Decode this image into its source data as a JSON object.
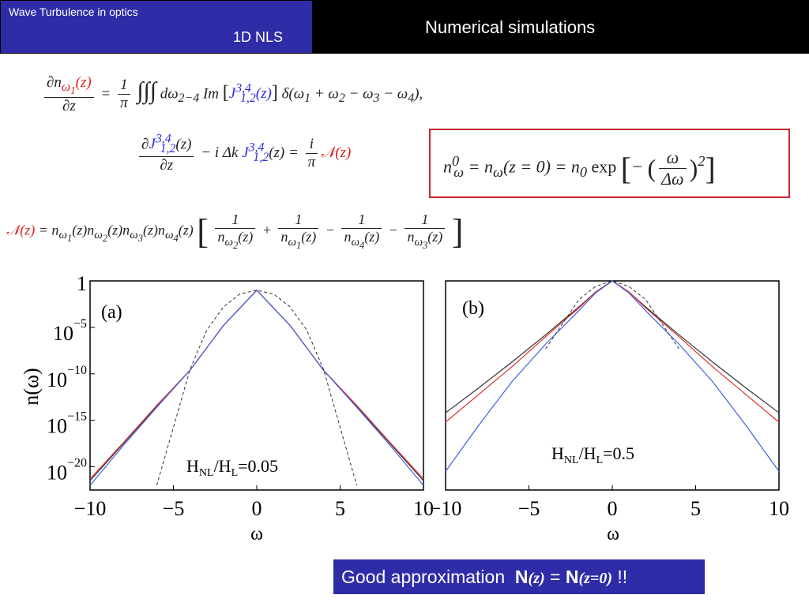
{
  "header": {
    "course_title": "Wave Turbulence in optics",
    "section": "1D NLS",
    "slide_title": "Numerical simulations"
  },
  "equations": {
    "eq1_lhs": "∂n_ω1(z)/∂z",
    "eq1_rhs": "= (1/π) ∫∫∫ dω2-4 Im [J^{3,4}_{1,2}(z)] δ(ω1 + ω2 − ω3 − ω4),",
    "eq2": "∂J^{3,4}_{1,2}(z)/∂z − i Δk J^{3,4}_{1,2}(z) = (i/π) N(z)",
    "eq3": "N(z) = n_ω1(z) n_ω2(z) n_ω3(z) n_ω4(z) [1/n_ω2(z) + 1/n_ω1(z) − 1/n_ω4(z) − 1/n_ω3(z)]",
    "boxed": "n⁰_ω = n_ω(z = 0) = n₀ exp[−(ω/Δω)²]"
  },
  "colors": {
    "header_blue": "#2f2ca8",
    "header_black": "#000000",
    "box_red": "#c8262c",
    "eq_red": "#dd2222",
    "eq_blue": "#2a2ae0",
    "series_black": "#333333",
    "series_red": "#e03030",
    "series_blue": "#4060e0"
  },
  "chart_data": [
    {
      "type": "line",
      "panel_label": "(a)",
      "annotation": "H_NL/H_L=0.05",
      "xlabel": "ω",
      "ylabel": "n(ω)",
      "xlim": [
        -10,
        10
      ],
      "xticks": [
        -10,
        -5,
        0,
        5,
        10
      ],
      "ylog": true,
      "ylim_log10": [
        -22.5,
        0
      ],
      "yticks": [
        "1",
        "10^−5",
        "10^−10",
        "10^−15",
        "10^−20"
      ],
      "ytick_values_log10": [
        0,
        -5,
        -10,
        -15,
        -20
      ],
      "x": [
        -10,
        -8,
        -6,
        -4,
        -3,
        -2,
        -1,
        0,
        1,
        2,
        3,
        4,
        6,
        8,
        10
      ],
      "series": [
        {
          "color": "#333333",
          "style": "solid",
          "log10_values": [
            -21.5,
            -17.5,
            -13.5,
            -9.6,
            -7.2,
            -4.8,
            -2.9,
            -1.0,
            -2.9,
            -4.8,
            -7.2,
            -9.6,
            -13.5,
            -17.5,
            -21.5
          ]
        },
        {
          "color": "#e03030",
          "style": "solid",
          "log10_values": [
            -21.3,
            -17.4,
            -13.4,
            -9.6,
            -7.2,
            -4.8,
            -2.9,
            -1.0,
            -2.9,
            -4.8,
            -7.2,
            -9.6,
            -13.4,
            -17.4,
            -21.3
          ]
        },
        {
          "color": "#4060e0",
          "style": "solid",
          "log10_values": [
            -22.0,
            -17.7,
            -13.6,
            -9.6,
            -7.2,
            -4.8,
            -2.9,
            -1.0,
            -2.9,
            -4.8,
            -7.2,
            -9.6,
            -13.6,
            -17.7,
            -22.0
          ]
        },
        {
          "color": "#333333",
          "style": "dashed",
          "log10_values": [
            null,
            null,
            -22.0,
            -9.5,
            -5.3,
            -2.8,
            -1.4,
            -1.0,
            -1.4,
            -2.8,
            -5.3,
            -9.5,
            -22.0,
            null,
            null
          ]
        }
      ]
    },
    {
      "type": "line",
      "panel_label": "(b)",
      "annotation": "H_NL/H_L=0.5",
      "xlabel": "ω",
      "ylabel": "",
      "xlim": [
        -10,
        10
      ],
      "xticks": [
        -10,
        -5,
        0,
        5,
        10
      ],
      "ylog": true,
      "ylim_log10": [
        -22.5,
        0
      ],
      "x": [
        -10,
        -8,
        -6,
        -4,
        -2,
        -1,
        0,
        1,
        2,
        4,
        6,
        8,
        10
      ],
      "series": [
        {
          "color": "#333333",
          "style": "solid",
          "log10_values": [
            -14.2,
            -11.5,
            -8.7,
            -5.8,
            -2.8,
            -1.2,
            0,
            -1.2,
            -2.8,
            -5.8,
            -8.7,
            -11.5,
            -14.2
          ]
        },
        {
          "color": "#e03030",
          "style": "solid",
          "log10_values": [
            -15.2,
            -12.2,
            -9.2,
            -6.0,
            -2.9,
            -1.2,
            0,
            -1.2,
            -2.9,
            -6.0,
            -9.2,
            -12.2,
            -15.2
          ]
        },
        {
          "color": "#4060e0",
          "style": "solid",
          "log10_values": [
            -20.5,
            -15.5,
            -10.8,
            -6.8,
            -3.2,
            -1.3,
            0,
            -1.3,
            -3.2,
            -6.8,
            -10.8,
            -15.5,
            -20.5
          ]
        },
        {
          "color": "#333333",
          "style": "dashed",
          "log10_values": [
            null,
            null,
            null,
            -7.3,
            -2.0,
            -0.6,
            0,
            -0.6,
            -2.0,
            -7.3,
            null,
            null,
            null
          ]
        }
      ]
    }
  ],
  "banner": {
    "text": "Good approximation",
    "n1": "N",
    "arg1": "(z)",
    "eq": "=",
    "n2": "N",
    "arg2": "(z=0)",
    "tail": "!!"
  }
}
